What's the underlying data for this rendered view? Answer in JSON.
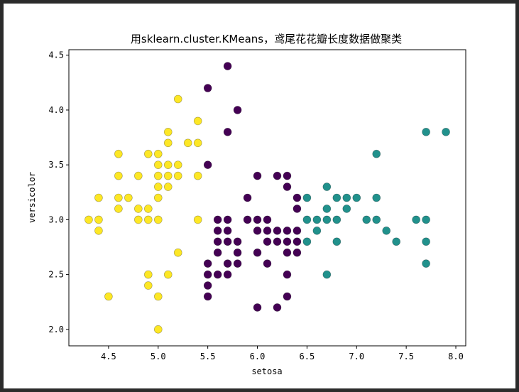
{
  "chart_data": {
    "type": "scatter",
    "title": "用sklearn.cluster.KMeans，鸢尾花花瓣长度数据做聚类",
    "xlabel": "setosa",
    "ylabel": "versicolor",
    "xlim": [
      4.1,
      8.1
    ],
    "ylim": [
      1.85,
      4.55
    ],
    "xticks": [
      4.5,
      5.0,
      5.5,
      6.0,
      6.5,
      7.0,
      7.5,
      8.0
    ],
    "xtick_labels": [
      "4.5",
      "5.0",
      "5.5",
      "6.0",
      "6.5",
      "7.0",
      "7.5",
      "8.0"
    ],
    "yticks": [
      2.0,
      2.5,
      3.0,
      3.5,
      4.0,
      4.5
    ],
    "ytick_labels": [
      "2.0",
      "2.5",
      "3.0",
      "3.5",
      "4.0",
      "4.5"
    ],
    "grid": false,
    "series": [
      {
        "color": "#fde725",
        "points": [
          [
            4.3,
            3.0
          ],
          [
            4.4,
            2.9
          ],
          [
            4.4,
            3.0
          ],
          [
            4.4,
            3.2
          ],
          [
            4.5,
            2.3
          ],
          [
            4.6,
            3.1
          ],
          [
            4.6,
            3.2
          ],
          [
            4.6,
            3.4
          ],
          [
            4.6,
            3.6
          ],
          [
            4.7,
            3.2
          ],
          [
            4.8,
            3.0
          ],
          [
            4.8,
            3.1
          ],
          [
            4.8,
            3.4
          ],
          [
            4.9,
            2.4
          ],
          [
            4.9,
            2.5
          ],
          [
            4.9,
            3.0
          ],
          [
            4.9,
            3.1
          ],
          [
            4.9,
            3.6
          ],
          [
            5.0,
            2.0
          ],
          [
            5.0,
            2.3
          ],
          [
            5.0,
            3.0
          ],
          [
            5.0,
            3.2
          ],
          [
            5.0,
            3.3
          ],
          [
            5.0,
            3.4
          ],
          [
            5.0,
            3.5
          ],
          [
            5.0,
            3.6
          ],
          [
            5.1,
            2.5
          ],
          [
            5.1,
            3.3
          ],
          [
            5.1,
            3.4
          ],
          [
            5.1,
            3.5
          ],
          [
            5.1,
            3.7
          ],
          [
            5.1,
            3.8
          ],
          [
            5.2,
            2.7
          ],
          [
            5.2,
            3.4
          ],
          [
            5.2,
            3.5
          ],
          [
            5.2,
            4.1
          ],
          [
            5.3,
            3.7
          ],
          [
            5.4,
            3.0
          ],
          [
            5.4,
            3.4
          ],
          [
            5.4,
            3.7
          ],
          [
            5.4,
            3.9
          ]
        ]
      },
      {
        "color": "#440154",
        "points": [
          [
            5.5,
            2.3
          ],
          [
            5.5,
            2.4
          ],
          [
            5.5,
            2.5
          ],
          [
            5.5,
            2.6
          ],
          [
            5.5,
            3.5
          ],
          [
            5.5,
            4.2
          ],
          [
            5.6,
            2.5
          ],
          [
            5.6,
            2.7
          ],
          [
            5.6,
            2.8
          ],
          [
            5.6,
            2.9
          ],
          [
            5.6,
            3.0
          ],
          [
            5.7,
            2.5
          ],
          [
            5.7,
            2.6
          ],
          [
            5.7,
            2.8
          ],
          [
            5.7,
            2.9
          ],
          [
            5.7,
            3.0
          ],
          [
            5.7,
            3.8
          ],
          [
            5.7,
            4.4
          ],
          [
            5.8,
            2.6
          ],
          [
            5.8,
            2.7
          ],
          [
            5.8,
            2.8
          ],
          [
            5.8,
            4.0
          ],
          [
            5.9,
            3.0
          ],
          [
            5.9,
            3.2
          ],
          [
            6.0,
            2.2
          ],
          [
            6.0,
            2.7
          ],
          [
            6.0,
            2.9
          ],
          [
            6.0,
            3.0
          ],
          [
            6.0,
            3.4
          ],
          [
            6.1,
            2.6
          ],
          [
            6.1,
            2.8
          ],
          [
            6.1,
            2.9
          ],
          [
            6.1,
            3.0
          ],
          [
            6.2,
            2.2
          ],
          [
            6.2,
            2.8
          ],
          [
            6.2,
            2.9
          ],
          [
            6.2,
            3.4
          ],
          [
            6.3,
            2.3
          ],
          [
            6.3,
            2.5
          ],
          [
            6.3,
            2.7
          ],
          [
            6.3,
            2.8
          ],
          [
            6.3,
            2.9
          ],
          [
            6.3,
            3.3
          ],
          [
            6.3,
            3.4
          ],
          [
            6.4,
            2.7
          ],
          [
            6.4,
            2.8
          ],
          [
            6.4,
            2.9
          ],
          [
            6.4,
            3.1
          ],
          [
            6.4,
            3.2
          ]
        ]
      },
      {
        "color": "#21918c",
        "points": [
          [
            6.5,
            2.8
          ],
          [
            6.5,
            3.0
          ],
          [
            6.5,
            3.2
          ],
          [
            6.6,
            2.9
          ],
          [
            6.6,
            3.0
          ],
          [
            6.7,
            2.5
          ],
          [
            6.7,
            3.0
          ],
          [
            6.7,
            3.1
          ],
          [
            6.7,
            3.3
          ],
          [
            6.8,
            2.8
          ],
          [
            6.8,
            3.0
          ],
          [
            6.8,
            3.2
          ],
          [
            6.9,
            3.1
          ],
          [
            6.9,
            3.2
          ],
          [
            7.0,
            3.2
          ],
          [
            7.1,
            3.0
          ],
          [
            7.2,
            3.0
          ],
          [
            7.2,
            3.2
          ],
          [
            7.2,
            3.6
          ],
          [
            7.3,
            2.9
          ],
          [
            7.4,
            2.8
          ],
          [
            7.6,
            3.0
          ],
          [
            7.7,
            2.6
          ],
          [
            7.7,
            2.8
          ],
          [
            7.7,
            3.0
          ],
          [
            7.7,
            3.8
          ],
          [
            7.9,
            3.8
          ]
        ]
      }
    ]
  }
}
